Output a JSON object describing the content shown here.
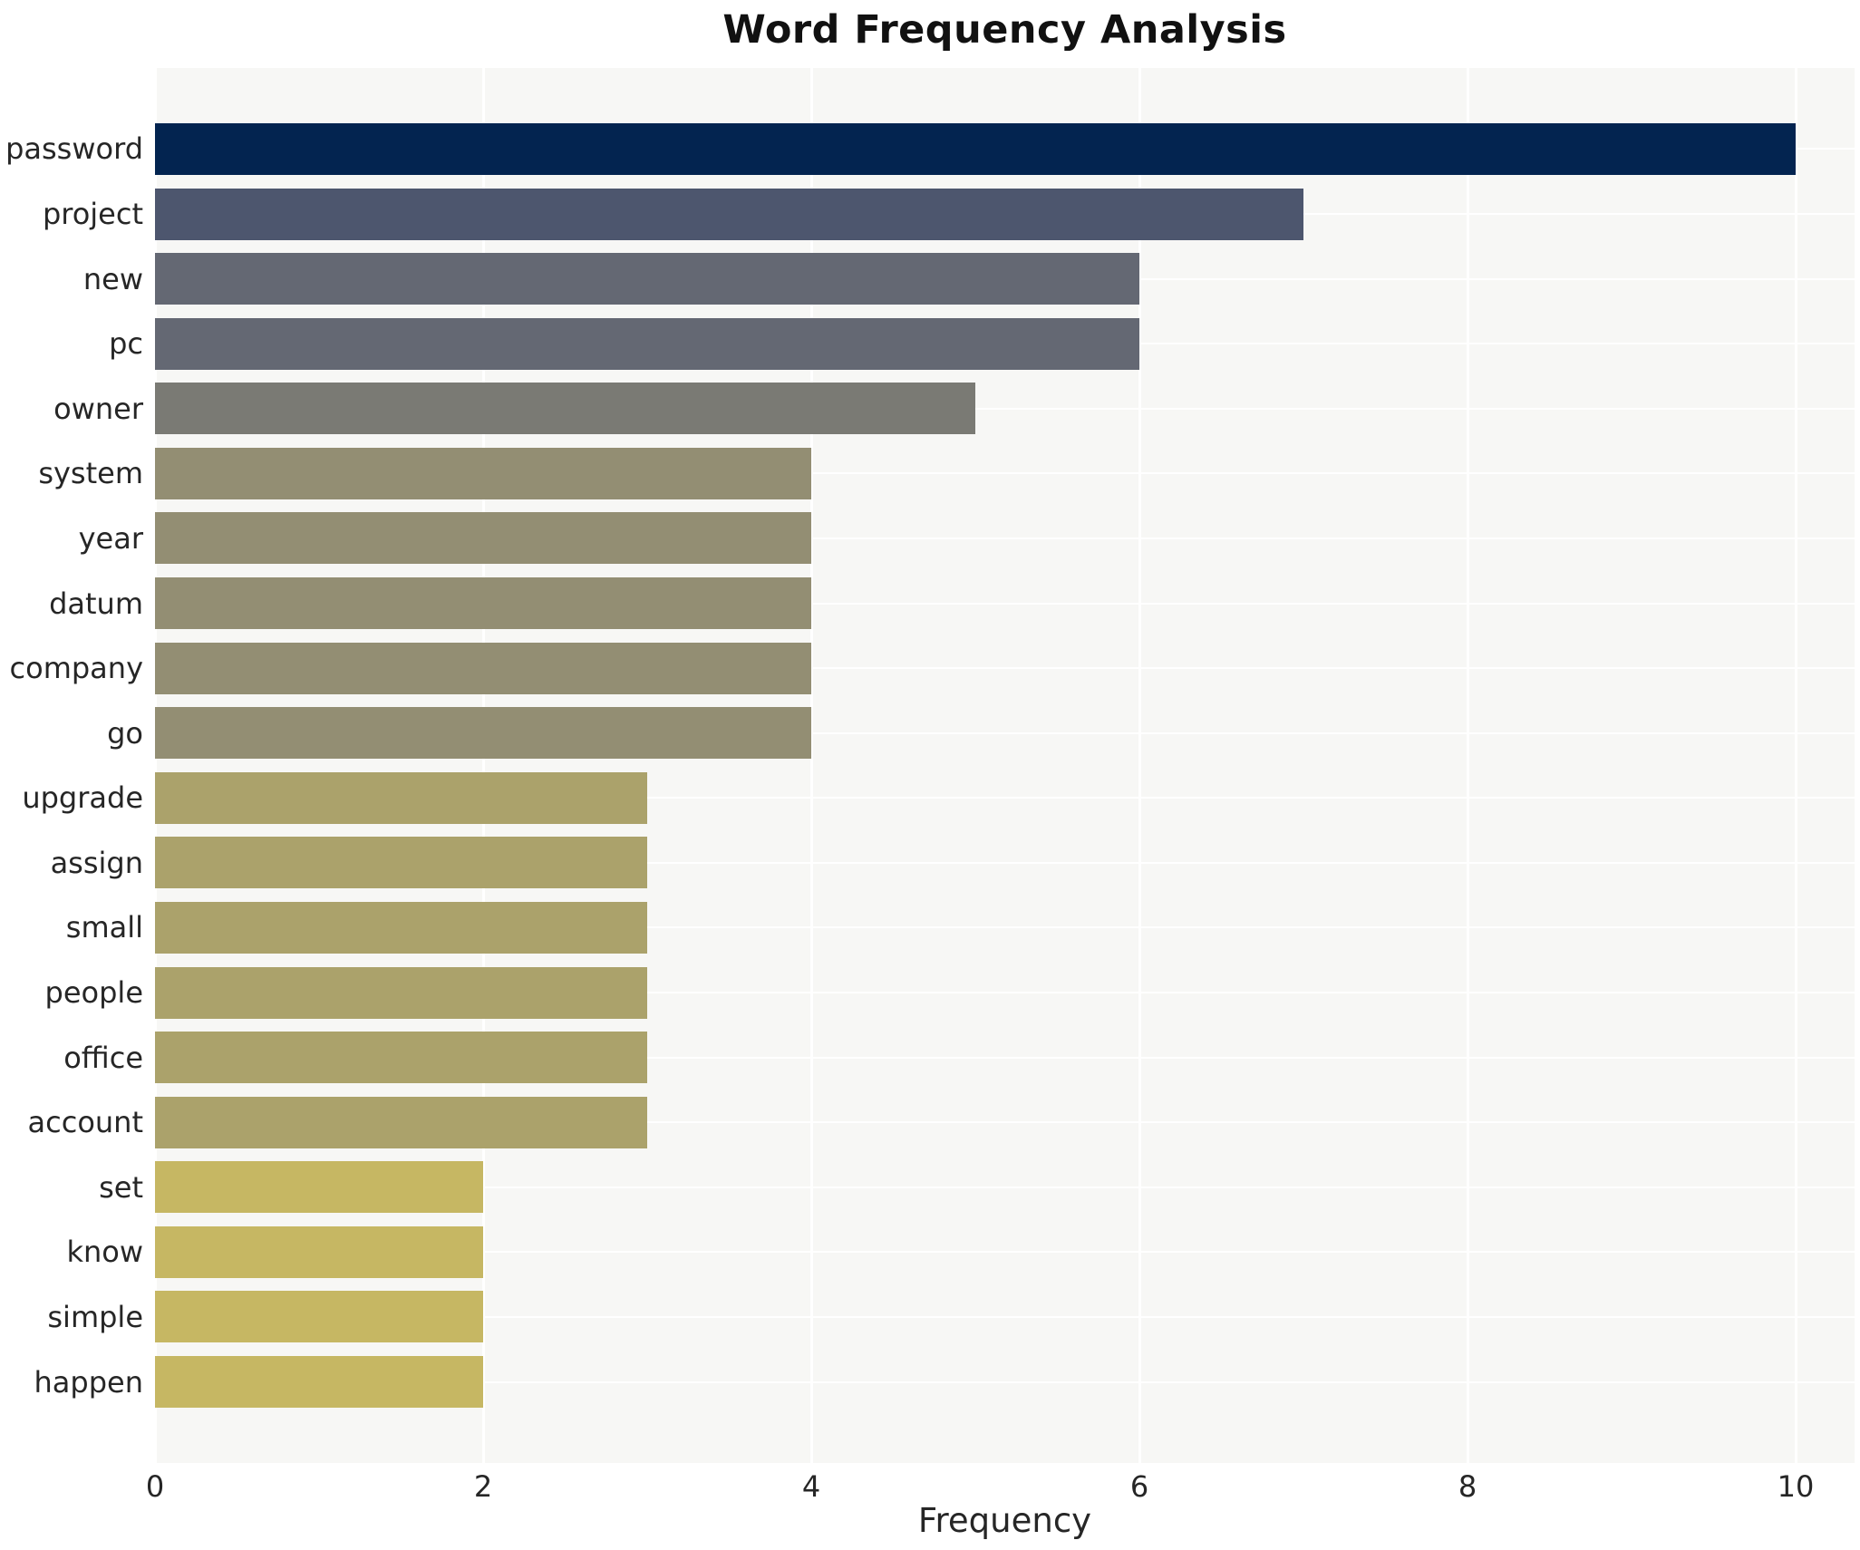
{
  "chart_data": {
    "type": "bar",
    "orientation": "horizontal",
    "title": "Word Frequency Analysis",
    "xlabel": "Frequency",
    "ylabel": "",
    "categories": [
      "password",
      "project",
      "new",
      "pc",
      "owner",
      "system",
      "year",
      "datum",
      "company",
      "go",
      "upgrade",
      "assign",
      "small",
      "people",
      "office",
      "account",
      "set",
      "know",
      "simple",
      "happen"
    ],
    "values": [
      10,
      7,
      6,
      6,
      5,
      4,
      4,
      4,
      4,
      4,
      3,
      3,
      3,
      3,
      3,
      3,
      2,
      2,
      2,
      2
    ],
    "bar_colors": [
      "#032450",
      "#4d566e",
      "#646873",
      "#646873",
      "#7a7a74",
      "#938e73",
      "#938e73",
      "#938e73",
      "#938e73",
      "#938e73",
      "#aba26b",
      "#aba26b",
      "#aba26b",
      "#aba26b",
      "#aba26b",
      "#aba26b",
      "#c6b763",
      "#c6b763",
      "#c6b763",
      "#c6b763"
    ],
    "xlim": [
      0,
      10.36
    ],
    "xticks": [
      0,
      2,
      4,
      6,
      8,
      10
    ],
    "grid": true,
    "grid_color": "#ffffff",
    "plot_background": "#f7f7f5",
    "legend": false
  }
}
